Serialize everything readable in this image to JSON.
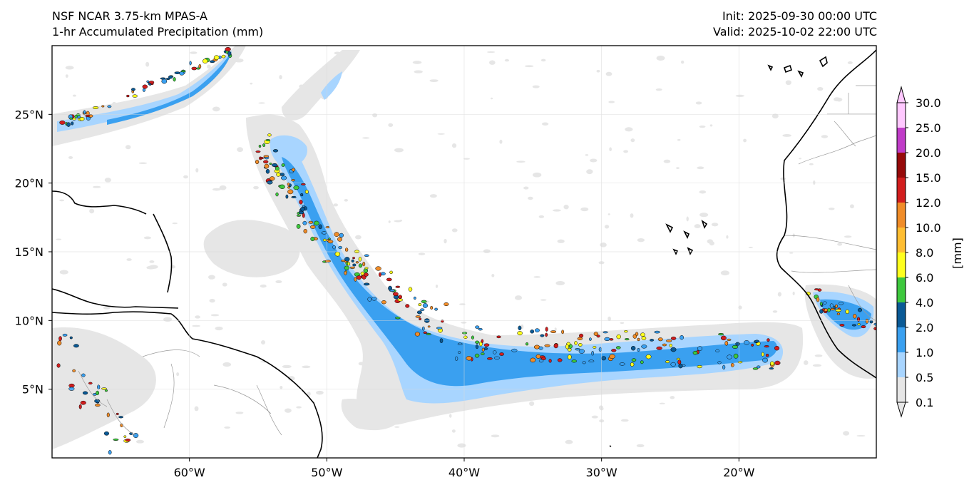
{
  "title": {
    "model": "NSF NCAR 3.75-km MPAS-A",
    "field": "1-hr Accumulated Precipitation (mm)",
    "init": "Init: 2025-09-30 00:00 UTC",
    "valid": "Valid: 2025-10-02 22:00 UTC"
  },
  "map": {
    "lon_range": [
      -70,
      -10
    ],
    "lat_range": [
      0,
      30
    ],
    "lon_ticks": [
      {
        "value": -60,
        "label": "60°W"
      },
      {
        "value": -50,
        "label": "50°W"
      },
      {
        "value": -40,
        "label": "40°W"
      },
      {
        "value": -30,
        "label": "30°W"
      },
      {
        "value": -20,
        "label": "20°W"
      }
    ],
    "lat_ticks": [
      {
        "value": 25,
        "label": "25°N"
      },
      {
        "value": 20,
        "label": "20°N"
      },
      {
        "value": 15,
        "label": "15°N"
      },
      {
        "value": 10,
        "label": "10°N"
      },
      {
        "value": 5,
        "label": "5°N"
      }
    ]
  },
  "colorbar": {
    "unit_label": "[mm]",
    "levels": [
      "0.1",
      "0.5",
      "1.0",
      "2.0",
      "4.0",
      "6.0",
      "8.0",
      "10.0",
      "12.0",
      "15.0",
      "20.0",
      "25.0",
      "30.0"
    ],
    "colors": [
      "#e6e6e6",
      "#a8d5ff",
      "#3aa0f0",
      "#0a5a96",
      "#3ec83e",
      "#ffff1e",
      "#ffbe32",
      "#f08c28",
      "#d21e1e",
      "#960a0a",
      "#c03cc8",
      "#ffc8ff"
    ]
  },
  "colors": {
    "frame": "#000000",
    "coast": "#000000",
    "border": "#9a9a9a",
    "grid": "#d8d8d8"
  }
}
